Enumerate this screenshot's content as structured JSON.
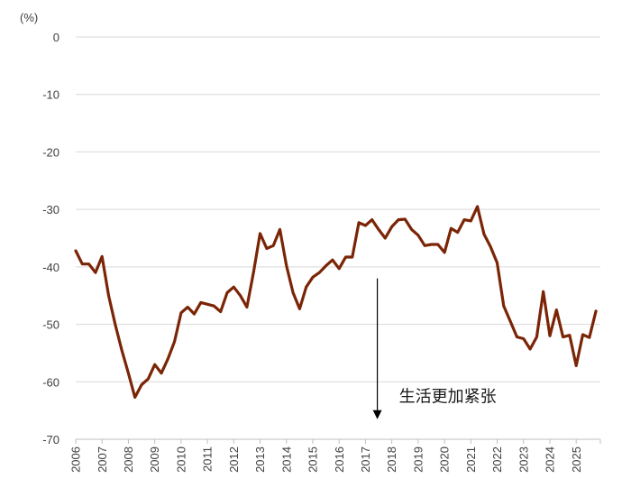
{
  "chart_data": {
    "type": "line",
    "y_unit": "(%)",
    "ylim": [
      -70,
      0
    ],
    "y_ticks": [
      0,
      -10,
      -20,
      -30,
      -40,
      -50,
      -60,
      -70
    ],
    "y_tick_labels": [
      "0",
      "-10",
      "-20",
      "-30",
      "-40",
      "-50",
      "-60",
      "-70"
    ],
    "x_range": [
      2006.0,
      2025.917
    ],
    "x_tick_labels": [
      "2006",
      "2007",
      "2008",
      "2009",
      "2010",
      "2011",
      "2012",
      "2013",
      "2014",
      "2015",
      "2016",
      "2017",
      "2018",
      "2019",
      "2020",
      "2021",
      "2022",
      "2023",
      "2024",
      "2025"
    ],
    "grid": "horizontal",
    "line_color": "#7b2507",
    "series": [
      {
        "x": [
          2006.0,
          2006.25,
          2006.5,
          2006.75,
          2007.0,
          2007.25,
          2007.5,
          2007.75,
          2008.0,
          2008.25,
          2008.5,
          2008.75,
          2009.0,
          2009.25,
          2009.5,
          2009.75,
          2010.0,
          2010.25,
          2010.5,
          2010.75,
          2011.0,
          2011.25,
          2011.5,
          2011.75,
          2012.0,
          2012.25,
          2012.5,
          2012.75,
          2013.0,
          2013.25,
          2013.5,
          2013.75,
          2014.0,
          2014.25,
          2014.5,
          2014.75,
          2015.0,
          2015.25,
          2015.5,
          2015.75,
          2016.0,
          2016.25,
          2016.5,
          2016.75,
          2017.0,
          2017.25,
          2017.5,
          2017.75,
          2018.0,
          2018.25,
          2018.5,
          2018.75,
          2019.0,
          2019.25,
          2019.5,
          2019.75,
          2020.0,
          2020.25,
          2020.5,
          2020.75,
          2021.0,
          2021.25,
          2021.5,
          2021.75,
          2022.0,
          2022.25,
          2022.5,
          2022.75,
          2023.0,
          2023.25,
          2023.5,
          2023.75,
          2024.0,
          2024.25,
          2024.5,
          2024.75,
          2025.0,
          2025.25,
          2025.5,
          2025.75
        ],
        "values": [
          -37.2,
          -39.5,
          -39.5,
          -41.0,
          -38.2,
          -45.0,
          -50.0,
          -54.5,
          -58.5,
          -62.7,
          -60.5,
          -59.5,
          -57.0,
          -58.5,
          -56.0,
          -53.0,
          -48.0,
          -47.0,
          -48.2,
          -46.2,
          -46.5,
          -46.8,
          -47.8,
          -44.5,
          -43.5,
          -45.0,
          -47.0,
          -41.0,
          -34.2,
          -36.8,
          -36.3,
          -33.5,
          -39.8,
          -44.5,
          -47.3,
          -43.5,
          -41.8,
          -41.0,
          -39.8,
          -38.8,
          -40.3,
          -38.3,
          -38.3,
          -32.3,
          -32.8,
          -31.8,
          -33.5,
          -35.0,
          -33.0,
          -31.8,
          -31.7,
          -33.5,
          -34.5,
          -36.3,
          -36.1,
          -36.1,
          -37.5,
          -33.3,
          -34.0,
          -31.8,
          -32.0,
          -29.5,
          -34.3,
          -36.5,
          -39.3,
          -46.8,
          -49.5,
          -52.2,
          -52.5,
          -54.3,
          -52.2,
          -44.3,
          -52.0,
          -47.5,
          -52.2,
          -51.9,
          -57.2,
          -51.8,
          -52.3,
          -47.7
        ]
      }
    ],
    "annotation": {
      "text": "生活更加紧张",
      "arrow_from_y": -42.0,
      "arrow_to_y": -66.5,
      "x": 2017.45
    }
  }
}
